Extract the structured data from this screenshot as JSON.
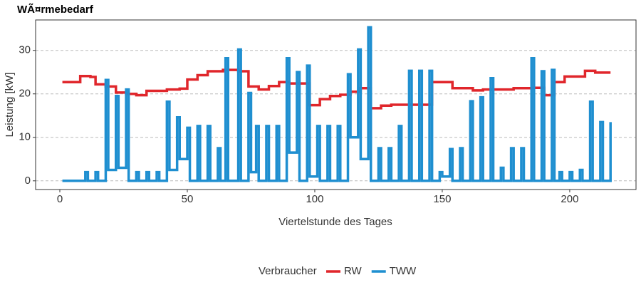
{
  "chart_data": {
    "type": "step",
    "title": "WÃ¤rmebedarf",
    "x_label": "Viertelstunde des Tages",
    "y_label": "Leistung [kW]",
    "legend_title": "Verbraucher",
    "legend_position": "bottom",
    "grid": true,
    "xlim": [
      -9.5,
      226
    ],
    "ylim": [
      -2,
      37
    ],
    "xticks": [
      0,
      50,
      100,
      150,
      200
    ],
    "yticks": [
      0,
      10,
      20,
      30
    ],
    "series": [
      {
        "name": "RW",
        "color": "#e0262b",
        "x": [
          1,
          8,
          12,
          14,
          18,
          22,
          26,
          30,
          34,
          42,
          47,
          50,
          54,
          58,
          64,
          70,
          74,
          78,
          82,
          86,
          90,
          98,
          102,
          106,
          110,
          114,
          118,
          122,
          126,
          130,
          146,
          154,
          162,
          166,
          178,
          186,
          190,
          194,
          198,
          206,
          210,
          216
        ],
        "values": [
          22.7,
          24.1,
          23.9,
          22.2,
          21.7,
          20.3,
          20.0,
          19.7,
          20.7,
          21.0,
          21.2,
          23.3,
          24.3,
          25.2,
          25.5,
          25.2,
          21.7,
          21.0,
          21.8,
          22.7,
          22.4,
          17.4,
          18.8,
          19.5,
          19.8,
          20.5,
          21.3,
          16.7,
          17.3,
          17.5,
          22.7,
          21.3,
          20.8,
          21.0,
          21.3,
          21.4,
          19.7,
          22.7,
          24.0,
          25.3,
          24.9,
          24.9
        ]
      },
      {
        "name": "TWW",
        "color": "#1f8fd0",
        "x": [
          1,
          10,
          11,
          14,
          15,
          18,
          19,
          22,
          23,
          26,
          27,
          30,
          31,
          34,
          35,
          38,
          39,
          42,
          43,
          46,
          47,
          50,
          51,
          54,
          55,
          58,
          59,
          62,
          63,
          65,
          66,
          70,
          71,
          74,
          75,
          77,
          78,
          81,
          82,
          85,
          86,
          89,
          90,
          93,
          94,
          97,
          98,
          101,
          102,
          105,
          106,
          109,
          110,
          113,
          114,
          117,
          118,
          121,
          122,
          125,
          126,
          129,
          130,
          133,
          134,
          137,
          138,
          141,
          142,
          145,
          146,
          149,
          150,
          153,
          154,
          157,
          158,
          161,
          162,
          165,
          166,
          169,
          170,
          173,
          174,
          177,
          178,
          181,
          182,
          185,
          186,
          189,
          190,
          193,
          194,
          196,
          197,
          200,
          201,
          204,
          205,
          208,
          209,
          212,
          213,
          216
        ],
        "values": [
          0,
          2,
          0,
          2,
          0,
          23.2,
          2.5,
          19.5,
          3,
          21,
          0,
          2,
          0,
          2,
          0,
          2,
          0,
          18.2,
          2.5,
          14.6,
          5,
          12.2,
          0,
          12.6,
          0,
          12.6,
          0,
          7.5,
          0,
          28.2,
          0,
          30.2,
          0,
          20.2,
          2,
          12.6,
          0,
          12.6,
          0,
          12.6,
          0,
          28.2,
          6.5,
          25,
          0,
          26.5,
          1,
          12.6,
          0,
          12.6,
          0,
          12.6,
          0,
          24.5,
          10,
          30.2,
          5,
          35.3,
          0,
          7.5,
          0,
          7.5,
          0,
          12.6,
          0,
          25.3,
          0,
          25.3,
          0,
          25.3,
          0,
          2,
          1,
          7.3,
          0,
          7.5,
          0,
          18.3,
          0,
          19.2,
          0,
          23.6,
          0,
          3,
          0,
          7.5,
          0,
          7.5,
          0,
          28.2,
          0,
          25.2,
          0,
          25.5,
          0,
          2,
          0,
          2,
          0,
          2.5,
          0,
          18.2,
          0,
          13.5,
          0,
          13.5
        ]
      }
    ]
  }
}
